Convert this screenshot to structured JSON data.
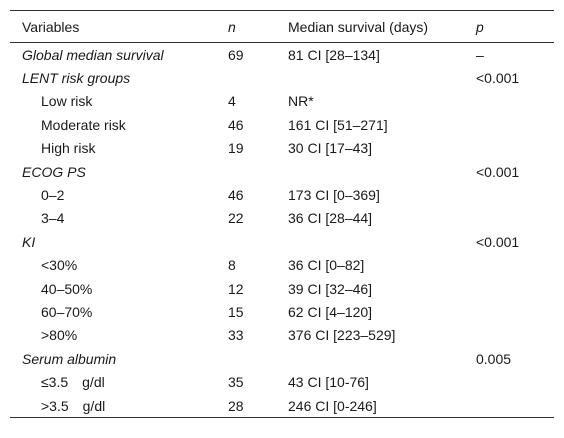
{
  "table": {
    "headers": {
      "variables": "Variables",
      "n": "n",
      "median_survival": "Median survival (days)",
      "p": "p"
    },
    "rows": [
      {
        "type": "group",
        "variable": "Global median survival",
        "n": "69",
        "median": "81 CI [28–134]",
        "p": "–"
      },
      {
        "type": "group",
        "variable": "LENT risk groups",
        "n": "",
        "median": "",
        "p": "<0.001"
      },
      {
        "type": "sub",
        "variable": "Low risk",
        "n": "4",
        "median": "NR*",
        "p": ""
      },
      {
        "type": "sub",
        "variable": "Moderate risk",
        "n": "46",
        "median": "161 CI [51–271]",
        "p": ""
      },
      {
        "type": "sub",
        "variable": "High risk",
        "n": "19",
        "median": "30 CI [17–43]",
        "p": ""
      },
      {
        "type": "group",
        "variable": "ECOG PS",
        "n": "",
        "median": "",
        "p": "<0.001"
      },
      {
        "type": "sub",
        "variable": "0–2",
        "n": "46",
        "median": "173 CI [0–369]",
        "p": ""
      },
      {
        "type": "sub",
        "variable": "3–4",
        "n": "22",
        "median": "36 CI [28–44]",
        "p": ""
      },
      {
        "type": "group",
        "variable": "KI",
        "n": "",
        "median": "",
        "p": "<0.001"
      },
      {
        "type": "sub",
        "variable": "<30%",
        "n": "8",
        "median": "36 CI [0–82]",
        "p": ""
      },
      {
        "type": "sub",
        "variable": "40–50%",
        "n": "12",
        "median": "39 CI [32–46]",
        "p": ""
      },
      {
        "type": "sub",
        "variable": "60–70%",
        "n": "15",
        "median": "62 CI [4–120]",
        "p": ""
      },
      {
        "type": "sub",
        "variable": ">80%",
        "n": "33",
        "median": "376 CI [223–529]",
        "p": ""
      },
      {
        "type": "group",
        "variable": "Serum albumin",
        "n": "",
        "median": "",
        "p": "0.005"
      },
      {
        "type": "sub",
        "variable": "≤3.5 g/dl",
        "n": "35",
        "median": "43 CI [10-76]",
        "p": ""
      },
      {
        "type": "sub",
        "variable": ">3.5 g/dl",
        "n": "28",
        "median": "246 CI [0-246]",
        "p": ""
      }
    ]
  }
}
